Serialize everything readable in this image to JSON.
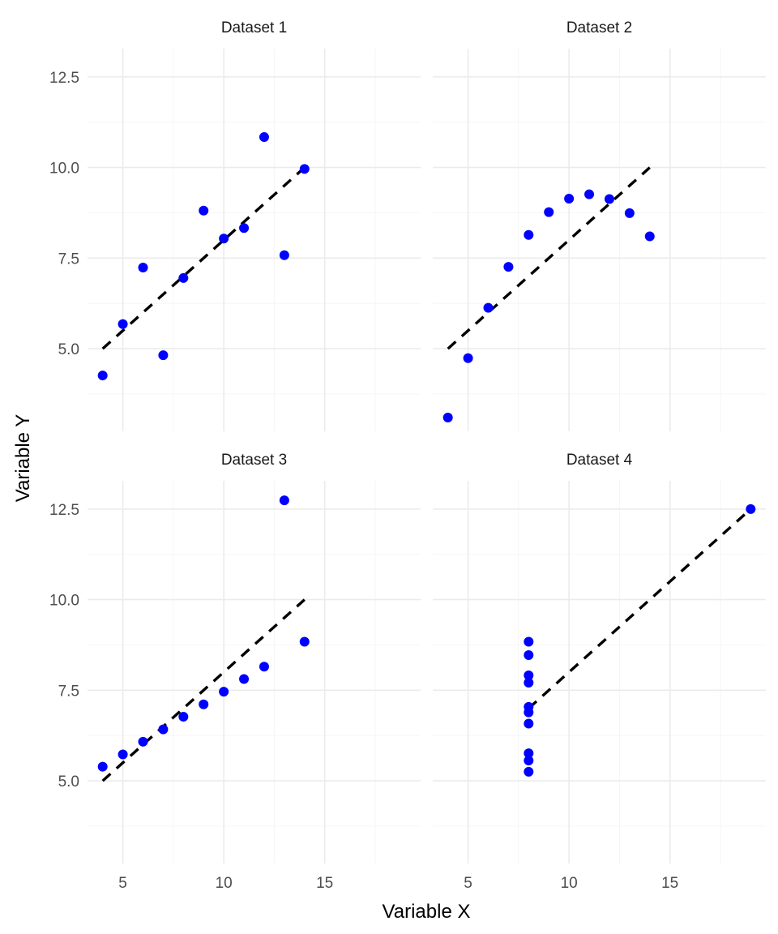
{
  "chart_data": {
    "type": "scatter",
    "xlabel": "Variable X",
    "ylabel": "Variable Y",
    "xlim": [
      3.25,
      19.75
    ],
    "ylim": [
      2.72,
      13.28
    ],
    "x_ticks": [
      5,
      10,
      15
    ],
    "y_ticks": [
      5.0,
      7.5,
      10.0,
      12.5
    ],
    "y_tick_labels": [
      "5.0",
      "7.5",
      "10.0",
      "12.5"
    ],
    "grid": true,
    "point_color": "#0000ff",
    "line_color": "#000000",
    "fit_line": {
      "intercept": 3.0,
      "slope": 0.5,
      "style": "dashed"
    },
    "panels": [
      {
        "title": "Dataset 1",
        "x": [
          10,
          8,
          13,
          9,
          11,
          14,
          6,
          4,
          12,
          7,
          5
        ],
        "y": [
          8.04,
          6.95,
          7.58,
          8.81,
          8.33,
          9.96,
          7.24,
          4.26,
          10.84,
          4.82,
          5.68
        ],
        "fit_x": [
          4,
          14
        ]
      },
      {
        "title": "Dataset 2",
        "x": [
          10,
          8,
          13,
          9,
          11,
          14,
          6,
          4,
          12,
          7,
          5
        ],
        "y": [
          9.14,
          8.14,
          8.74,
          8.77,
          9.26,
          8.1,
          6.13,
          3.1,
          9.13,
          7.26,
          4.74
        ],
        "fit_x": [
          4,
          14
        ]
      },
      {
        "title": "Dataset 3",
        "x": [
          10,
          8,
          13,
          9,
          11,
          14,
          6,
          4,
          12,
          7,
          5
        ],
        "y": [
          7.46,
          6.77,
          12.74,
          7.11,
          7.81,
          8.84,
          6.08,
          5.39,
          8.15,
          6.42,
          5.73
        ],
        "fit_x": [
          4,
          14
        ]
      },
      {
        "title": "Dataset 4",
        "x": [
          8,
          8,
          8,
          8,
          8,
          8,
          8,
          19,
          8,
          8,
          8
        ],
        "y": [
          6.58,
          5.76,
          7.71,
          8.84,
          8.47,
          7.04,
          5.25,
          12.5,
          5.56,
          7.91,
          6.89
        ],
        "fit_x": [
          8,
          19
        ]
      }
    ]
  }
}
